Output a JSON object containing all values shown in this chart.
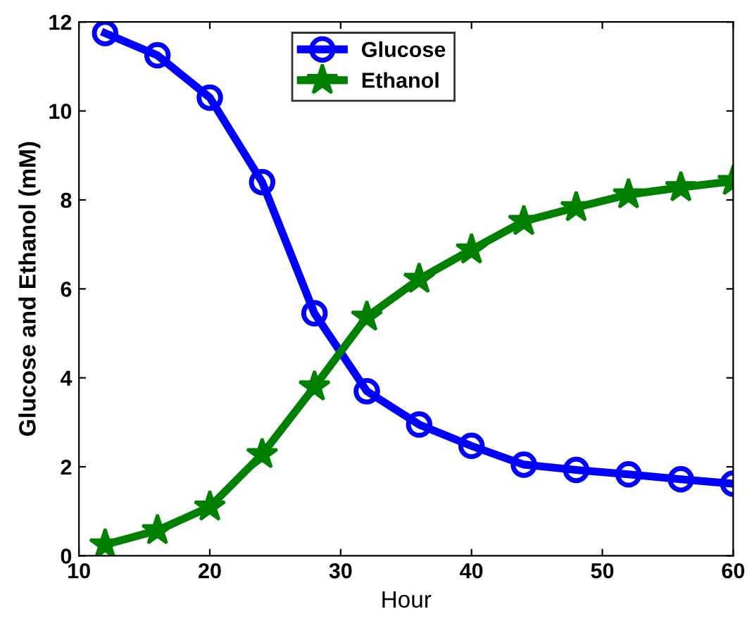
{
  "chart_data": {
    "type": "line",
    "xlabel": "Hour",
    "ylabel": "Glucose and Ethanol (mM)",
    "x": [
      12,
      16,
      20,
      24,
      28,
      32,
      36,
      40,
      44,
      48,
      52,
      56,
      60
    ],
    "series": [
      {
        "name": "Glucose",
        "color": "#0000ff",
        "marker": "circle",
        "values": [
          11.75,
          11.25,
          10.3,
          8.4,
          5.45,
          3.7,
          2.95,
          2.47,
          2.05,
          1.93,
          1.83,
          1.72,
          1.62
        ]
      },
      {
        "name": "Ethanol",
        "color": "#008000",
        "marker": "star",
        "values": [
          0.25,
          0.57,
          1.1,
          2.28,
          3.8,
          5.37,
          6.22,
          6.88,
          7.52,
          7.83,
          8.12,
          8.28,
          8.42
        ]
      }
    ],
    "xlim": [
      10,
      60
    ],
    "xticks": [
      10,
      20,
      30,
      40,
      50,
      60
    ],
    "ylim": [
      0,
      12
    ],
    "yticks": [
      0,
      2,
      4,
      6,
      8,
      10,
      12
    ],
    "legend": "top",
    "line_style": "solid",
    "grid": false
  }
}
